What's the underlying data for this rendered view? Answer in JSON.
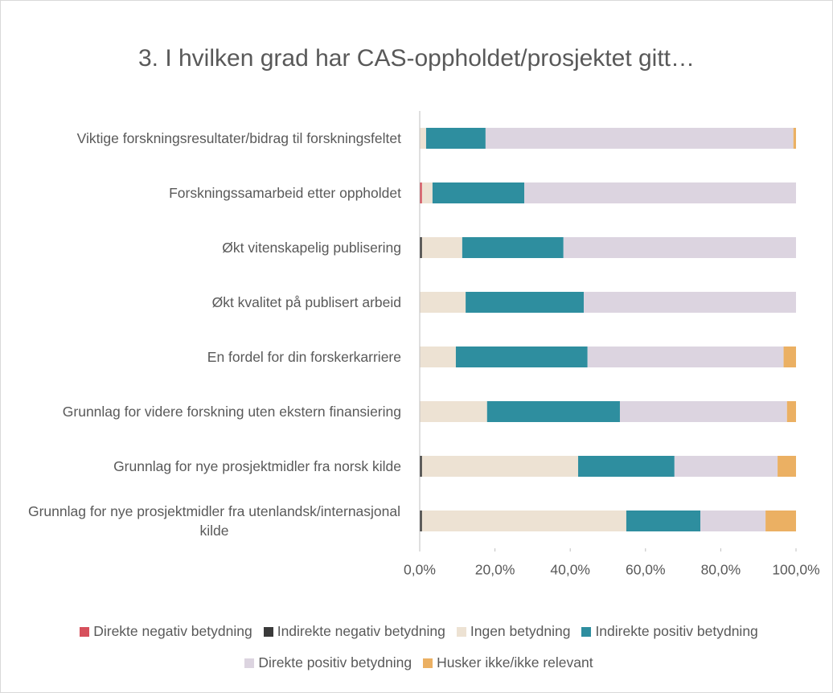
{
  "chart_data": {
    "type": "stacked_bar_horizontal",
    "title": "3. I hvilken grad har CAS-oppholdet/prosjektet gitt…",
    "categories": [
      "Viktige forskningsresultater/bidrag til forskningsfeltet",
      "Forskningssamarbeid etter oppholdet",
      "Økt vitenskapelig publisering",
      "Økt kvalitet på publisert arbeid",
      "En fordel for din forskerkarriere",
      "Grunnlag for videre forskning uten ekstern finansiering",
      "Grunnlag for nye prosjektmidler fra norsk kilde",
      "Grunnlag for nye prosjektmidler fra utenlandsk/internasjonal kilde"
    ],
    "series": [
      {
        "name": "Direkte negativ betydning",
        "color": "#d6505c",
        "values": [
          0,
          0.6,
          0,
          0,
          0,
          0,
          0,
          0
        ]
      },
      {
        "name": "Indirekte negativ betydning",
        "color": "#3a3a3a",
        "values": [
          0,
          0,
          0.6,
          0,
          0,
          0,
          0.6,
          0.6
        ]
      },
      {
        "name": "Ingen betydning",
        "color": "#ede2d3",
        "values": [
          1.7,
          2.8,
          10.7,
          12.2,
          9.6,
          17.9,
          41.5,
          54.3
        ]
      },
      {
        "name": "Indirekte positiv betydning",
        "color": "#2e8e9f",
        "values": [
          15.8,
          24.4,
          26.9,
          31.4,
          35.0,
          35.3,
          25.6,
          19.7
        ]
      },
      {
        "name": "Direkte positiv betydning",
        "color": "#dcd4e0",
        "values": [
          81.8,
          72.2,
          61.8,
          56.4,
          52.1,
          44.4,
          27.4,
          17.3
        ]
      },
      {
        "name": "Husker ikke/ikke relevant",
        "color": "#ebb063",
        "values": [
          0.7,
          0,
          0,
          0,
          3.3,
          2.4,
          4.9,
          8.1
        ]
      }
    ],
    "xlim": [
      0,
      100
    ],
    "xticks": [
      {
        "value": 0,
        "label": "0,0%"
      },
      {
        "value": 20,
        "label": "20,0%"
      },
      {
        "value": 40,
        "label": "40,0%"
      },
      {
        "value": 60,
        "label": "60,0%"
      },
      {
        "value": 80,
        "label": "80,0%"
      },
      {
        "value": 100,
        "label": "100,0%"
      }
    ],
    "legend": "bottom"
  }
}
